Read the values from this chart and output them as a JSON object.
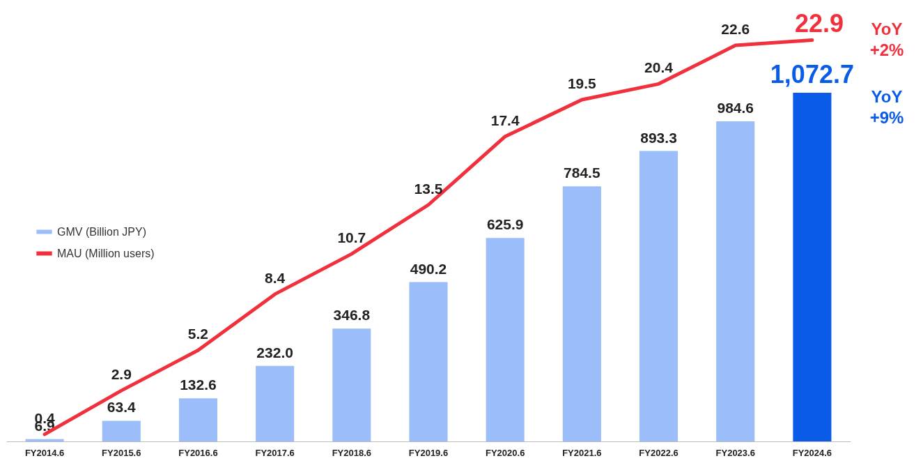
{
  "chart_data": {
    "type": "bar",
    "categories": [
      "FY2014.6",
      "FY2015.6",
      "FY2016.6",
      "FY2017.6",
      "FY2018.6",
      "FY2019.6",
      "FY2020.6",
      "FY2021.6",
      "FY2022.6",
      "FY2023.6",
      "FY2024.6"
    ],
    "series": [
      {
        "name": "GMV (Billion JPY)",
        "color": "#9bbdf9",
        "colors": [
          "#9bbdf9",
          "#9bbdf9",
          "#9bbdf9",
          "#9bbdf9",
          "#9bbdf9",
          "#9bbdf9",
          "#9bbdf9",
          "#9bbdf9",
          "#9bbdf9",
          "#9bbdf9",
          "#0a5ce8"
        ],
        "values": [
          6.9,
          63.4,
          132.6,
          232.0,
          346.8,
          490.2,
          625.9,
          784.5,
          893.3,
          984.6,
          1072.7
        ],
        "value_labels": [
          "6.9",
          "63.4",
          "132.6",
          "232.0",
          "346.8",
          "490.2",
          "625.9",
          "784.5",
          "893.3",
          "984.6",
          "1,072.7"
        ]
      },
      {
        "name": "MAU (Million users)",
        "type": "line",
        "axis": "y2",
        "color": "#f0303c",
        "values": [
          0.4,
          2.9,
          5.2,
          8.4,
          10.7,
          13.5,
          17.4,
          19.5,
          20.4,
          22.6,
          22.9
        ],
        "value_labels": [
          "0.4",
          "2.9",
          "5.2",
          "8.4",
          "10.7",
          "13.5",
          "17.4",
          "19.5",
          "20.4",
          "22.6",
          "22.9"
        ]
      }
    ],
    "annotations": [
      "YoY +2%",
      "YoY +9%"
    ],
    "legend": "left",
    "marker": "none"
  }
}
